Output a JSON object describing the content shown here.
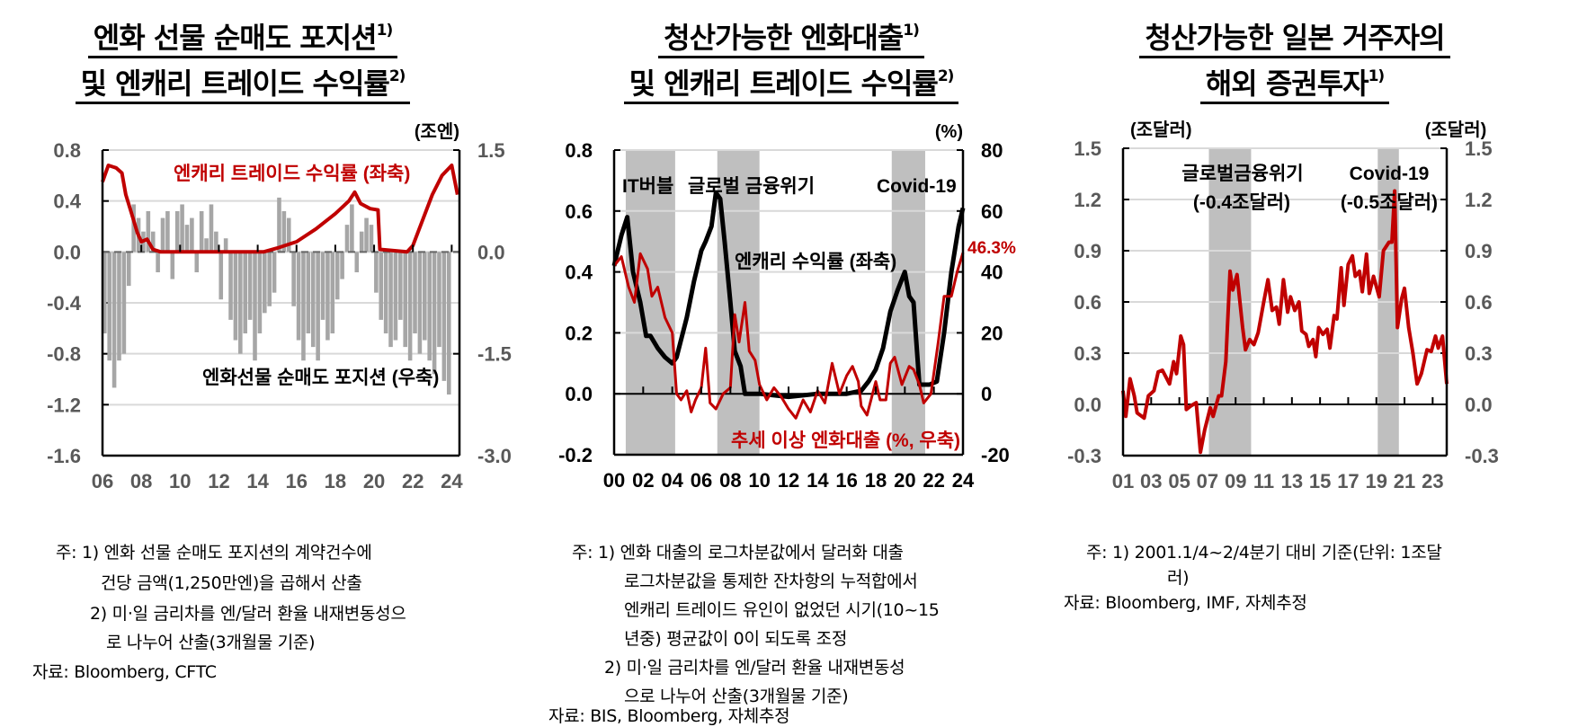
{
  "charts_text": [
    {
      "title_lines": [
        {
          "text": "엔화 선물 순매도 포지션",
          "sup": "1)"
        },
        {
          "text": "및 엔캐리 트레이드 수익률",
          "sup": "2)"
        }
      ],
      "notes": [
        "주: 1) 엔화 선물 순매도 포지션의 계약건수에",
        "건당 금액(1,250만엔)을 곱해서 산출",
        "2) 미·일 금리차를 엔/달러 환율 내재변동성으",
        "로 나누어 산출(3개월물 기준)",
        "자료: Bloomberg, CFTC"
      ]
    },
    {
      "title_lines": [
        {
          "text": "청산가능한 엔화대출",
          "sup": "1)"
        },
        {
          "text": "및 엔캐리 트레이드 수익률",
          "sup": "2)"
        }
      ],
      "notes": [
        "주: 1) 엔화 대출의 로그차분값에서 달러화 대출",
        "로그차분값을 통제한 잔차항의 누적합에서",
        "엔캐리 트레이드 유인이 없었던 시기(10~15",
        "년중) 평균값이 0이 되도록 조정",
        "2) 미·일 금리차를 엔/달러 환율 내재변동성",
        "으로 나누어 산출(3개월물 기준)",
        "자료: BIS, Bloomberg, 자체추정"
      ]
    },
    {
      "title_lines": [
        {
          "text": "청산가능한 일본 거주자의",
          "sup": ""
        },
        {
          "text": "해외 증권투자",
          "sup": "1)"
        }
      ],
      "notes": [
        "주: 1) 2001.1/4~2/4분기 대비 기준(단위: 1조달",
        "러)",
        "자료: Bloomberg, IMF, 자체추정"
      ]
    }
  ],
  "colors": {
    "red": "#c00000",
    "gray_area": "#a6a6a6",
    "shade": "#bfbfbf",
    "black": "#000000",
    "tick_gray": "#595959"
  },
  "chart_data": [
    {
      "type": "line+area",
      "xlim": [
        2006,
        2024.4
      ],
      "x_ticks": [
        "06",
        "08",
        "10",
        "12",
        "14",
        "16",
        "18",
        "20",
        "22",
        "24"
      ],
      "ylim_left": [
        -1.6,
        0.8
      ],
      "y_ticks_left": [
        "0.8",
        "0.4",
        "0.0",
        "-0.4",
        "-0.8",
        "-1.2",
        "-1.6"
      ],
      "ylim_right": [
        -3.0,
        1.5
      ],
      "y_ticks_right": [
        "1.5",
        "0.0",
        "-1.5",
        "-3.0"
      ],
      "unit_right": "(조엔)",
      "grid": true,
      "annotations": [
        {
          "text": "엔캐리 트레이드 수익률 (좌축)",
          "color": "red"
        },
        {
          "text": "엔화선물 순매도 포지션 (우축)",
          "color": "black"
        }
      ],
      "series": [
        {
          "name": "엔캐리 트레이드 수익률 (좌축)",
          "axis": "left",
          "kind": "line",
          "x": [
            2006.0,
            2006.3,
            2006.7,
            2007.0,
            2007.2,
            2007.5,
            2007.8,
            2008.0,
            2008.3,
            2008.6,
            2009.0,
            2010,
            2011,
            2012,
            2013,
            2014.3,
            2015,
            2016,
            2017,
            2018,
            2018.7,
            2019.0,
            2019.3,
            2019.8,
            2020.2,
            2020.3,
            2021.0,
            2021.7,
            2022.0,
            2022.5,
            2023.0,
            2023.5,
            2024.0,
            2024.3
          ],
          "y": [
            0.55,
            0.68,
            0.66,
            0.62,
            0.45,
            0.3,
            0.15,
            0.08,
            0.1,
            0.02,
            0.0,
            0.0,
            0.0,
            0.0,
            0.0,
            0.0,
            0.03,
            0.08,
            0.18,
            0.3,
            0.4,
            0.47,
            0.38,
            0.34,
            0.33,
            0.02,
            0.01,
            0.0,
            0.05,
            0.25,
            0.45,
            0.6,
            0.68,
            0.45
          ]
        },
        {
          "name": "엔화선물 순매도 포지션 (우축)",
          "axis": "right",
          "kind": "area",
          "x_start": 2006,
          "step": 0.25,
          "y": [
            -1.2,
            -1.6,
            -2.0,
            -1.6,
            -1.5,
            -0.5,
            0.7,
            0.5,
            0.3,
            0.6,
            0.3,
            -0.3,
            0.5,
            0.6,
            -0.4,
            0.6,
            0.7,
            0.4,
            0.5,
            -0.3,
            0.6,
            0.2,
            0.7,
            0.3,
            -0.7,
            0.2,
            -1.0,
            -1.3,
            -1.5,
            -1.2,
            -1.0,
            -1.6,
            -1.2,
            -0.9,
            -0.8,
            -0.6,
            0.8,
            0.6,
            0.5,
            -0.8,
            -1.3,
            -1.6,
            -1.2,
            -1.4,
            -1.6,
            -1.0,
            -1.3,
            -1.2,
            -0.7,
            -0.4,
            0.4,
            0.7,
            -0.3,
            0.3,
            0.5,
            0.4,
            -0.6,
            -1.0,
            -1.2,
            -1.4,
            -1.3,
            -1.0,
            -1.4,
            -1.6,
            -1.2,
            -1.5,
            -1.3,
            -1.6,
            -1.8,
            -1.4,
            -1.9,
            -2.1
          ]
        }
      ]
    },
    {
      "type": "line",
      "xlim": [
        2000,
        2024
      ],
      "x_ticks": [
        "00",
        "02",
        "04",
        "06",
        "08",
        "10",
        "12",
        "14",
        "16",
        "18",
        "20",
        "22",
        "24"
      ],
      "ylim_left": [
        -0.2,
        0.8
      ],
      "y_ticks_left": [
        "0.8",
        "0.6",
        "0.4",
        "0.2",
        "0.0",
        "-0.2"
      ],
      "ylim_right": [
        -20,
        80
      ],
      "y_ticks_right": [
        "80",
        "60",
        "40",
        "20",
        "0",
        "-20"
      ],
      "unit_right": "(%)",
      "grid": true,
      "shaded_periods": [
        {
          "label": "IT버블",
          "from": 2000.8,
          "to": 2004.2
        },
        {
          "label": "글로벌 금융위기",
          "from": 2007.1,
          "to": 2010.0
        },
        {
          "label": "Covid-19",
          "from": 2019.1,
          "to": 2021.4
        }
      ],
      "annotations": [
        {
          "text": "엔캐리 수익률 (좌축)",
          "color": "black"
        },
        {
          "text": "추세 이상 엔화대출 (%, 우축)",
          "color": "red"
        },
        {
          "text": "46.3%",
          "color": "red"
        }
      ],
      "series": [
        {
          "name": "엔캐리 수익률 (좌축)",
          "axis": "left",
          "color": "black",
          "x": [
            2000,
            2000.5,
            2000.9,
            2001.3,
            2001.8,
            2002.2,
            2002.5,
            2003,
            2003.5,
            2004,
            2004.3,
            2005,
            2005.5,
            2006,
            2006.3,
            2006.7,
            2007,
            2007.3,
            2007.6,
            2008,
            2008.3,
            2008.7,
            2009,
            2010,
            2012,
            2014,
            2016,
            2017,
            2017.5,
            2018,
            2018.5,
            2019,
            2019.5,
            2020,
            2020.3,
            2020.6,
            2021,
            2021.7,
            2022.2,
            2022.7,
            2023.2,
            2023.7,
            2024
          ],
          "y": [
            0.42,
            0.52,
            0.58,
            0.4,
            0.3,
            0.19,
            0.19,
            0.15,
            0.12,
            0.1,
            0.12,
            0.25,
            0.37,
            0.47,
            0.5,
            0.55,
            0.66,
            0.64,
            0.5,
            0.3,
            0.14,
            0.09,
            0.0,
            0.0,
            -0.01,
            0.0,
            0.0,
            0.01,
            0.04,
            0.08,
            0.15,
            0.27,
            0.34,
            0.4,
            0.32,
            0.3,
            0.03,
            0.03,
            0.04,
            0.2,
            0.4,
            0.55,
            0.61
          ]
        },
        {
          "name": "추세 이상 엔화대출 (%, 우축)",
          "axis": "right",
          "color": "red",
          "x": [
            2000,
            2000.5,
            2001,
            2001.4,
            2001.8,
            2002.3,
            2002.6,
            2003,
            2003.5,
            2004,
            2004.3,
            2004.6,
            2005,
            2005.3,
            2005.6,
            2006,
            2006.3,
            2006.6,
            2007,
            2007.5,
            2008,
            2008.3,
            2008.6,
            2009,
            2009.3,
            2009.7,
            2010,
            2010.5,
            2011,
            2011.5,
            2012,
            2012.5,
            2013,
            2013.5,
            2014,
            2014.5,
            2015,
            2015.5,
            2016,
            2016.4,
            2016.8,
            2017,
            2017.4,
            2018,
            2018.3,
            2018.7,
            2019,
            2019.3,
            2019.8,
            2020.3,
            2020.6,
            2021,
            2021.3,
            2021.8,
            2022.3,
            2022.7,
            2023.2,
            2023.6,
            2024
          ],
          "y": [
            42,
            45,
            35,
            30,
            46,
            41,
            32,
            35,
            25,
            20,
            0,
            -2,
            1,
            -6,
            -2,
            2,
            15,
            -3,
            -5,
            0,
            2,
            26,
            17,
            30,
            14,
            11,
            3,
            -2,
            2,
            -1,
            -5,
            -8,
            -2,
            -6,
            1,
            -3,
            10,
            0,
            6,
            9,
            4,
            -4,
            -7,
            4,
            -2,
            -2,
            10,
            12,
            3,
            9,
            8,
            3,
            -3,
            0,
            17,
            32,
            32,
            40,
            46.3
          ]
        }
      ]
    },
    {
      "type": "line",
      "xlim": [
        2001,
        2024
      ],
      "x_ticks": [
        "01",
        "03",
        "05",
        "07",
        "09",
        "11",
        "13",
        "15",
        "17",
        "19",
        "21",
        "23"
      ],
      "ylim_left": [
        -0.3,
        1.5
      ],
      "y_ticks_left": [
        "1.5",
        "1.2",
        "0.9",
        "0.6",
        "0.3",
        "0.0",
        "-0.3"
      ],
      "ylim_right": [
        -0.3,
        1.5
      ],
      "y_ticks_right": [
        "1.5",
        "1.2",
        "0.9",
        "0.6",
        "0.3",
        "0.0",
        "-0.3"
      ],
      "unit_left": "(조달러)",
      "unit_right": "(조달러)",
      "grid": true,
      "shaded_periods": [
        {
          "label": "글로벌금융위기",
          "sublabel": "(-0.4조달러)",
          "from": 2007.1,
          "to": 2010.1
        },
        {
          "label": "Covid-19",
          "sublabel": "(-0.5조달러)",
          "from": 2019.1,
          "to": 2020.6
        }
      ],
      "series": [
        {
          "axis": "left",
          "color": "red",
          "x": [
            2001.0,
            2001.2,
            2001.5,
            2001.8,
            2002.0,
            2002.5,
            2002.8,
            2003.2,
            2003.5,
            2003.8,
            2004.3,
            2004.6,
            2004.8,
            2005.1,
            2005.3,
            2005.5,
            2005.8,
            2006.2,
            2006.5,
            2006.8,
            2007.2,
            2007.4,
            2007.8,
            2008.0,
            2008.3,
            2008.6,
            2008.8,
            2009.1,
            2009.5,
            2009.7,
            2010.0,
            2010.3,
            2010.6,
            2011.0,
            2011.3,
            2011.6,
            2011.9,
            2012.1,
            2012.4,
            2012.7,
            2012.9,
            2013.2,
            2013.5,
            2013.7,
            2014.0,
            2014.2,
            2014.5,
            2014.7,
            2014.9,
            2015.2,
            2015.5,
            2015.7,
            2016.0,
            2016.2,
            2016.5,
            2016.7,
            2017.0,
            2017.3,
            2017.5,
            2017.8,
            2018.0,
            2018.3,
            2018.5,
            2018.8,
            2019.2,
            2019.5,
            2019.9,
            2020.1,
            2020.3,
            2020.5,
            2020.8,
            2021.0,
            2021.3,
            2021.6,
            2021.9,
            2022.2,
            2022.6,
            2022.9,
            2023.2,
            2023.4,
            2023.7,
            2024.0
          ],
          "y": [
            0.08,
            -0.07,
            0.15,
            0.05,
            -0.05,
            -0.08,
            0.05,
            0.08,
            0.19,
            0.2,
            0.12,
            0.25,
            0.18,
            0.4,
            0.35,
            -0.03,
            -0.01,
            0.01,
            -0.28,
            -0.15,
            -0.02,
            -0.07,
            0.05,
            0.05,
            0.25,
            0.78,
            0.67,
            0.76,
            0.45,
            0.32,
            0.38,
            0.35,
            0.42,
            0.6,
            0.73,
            0.55,
            0.57,
            0.47,
            0.73,
            0.54,
            0.63,
            0.55,
            0.6,
            0.43,
            0.41,
            0.34,
            0.38,
            0.28,
            0.45,
            0.41,
            0.44,
            0.33,
            0.52,
            0.5,
            0.8,
            0.58,
            0.82,
            0.87,
            0.75,
            0.78,
            0.66,
            0.88,
            0.65,
            0.75,
            0.63,
            0.9,
            0.95,
            0.95,
            1.25,
            0.45,
            0.62,
            0.68,
            0.45,
            0.3,
            0.12,
            0.18,
            0.32,
            0.31,
            0.4,
            0.33,
            0.4,
            0.12
          ]
        }
      ]
    }
  ]
}
